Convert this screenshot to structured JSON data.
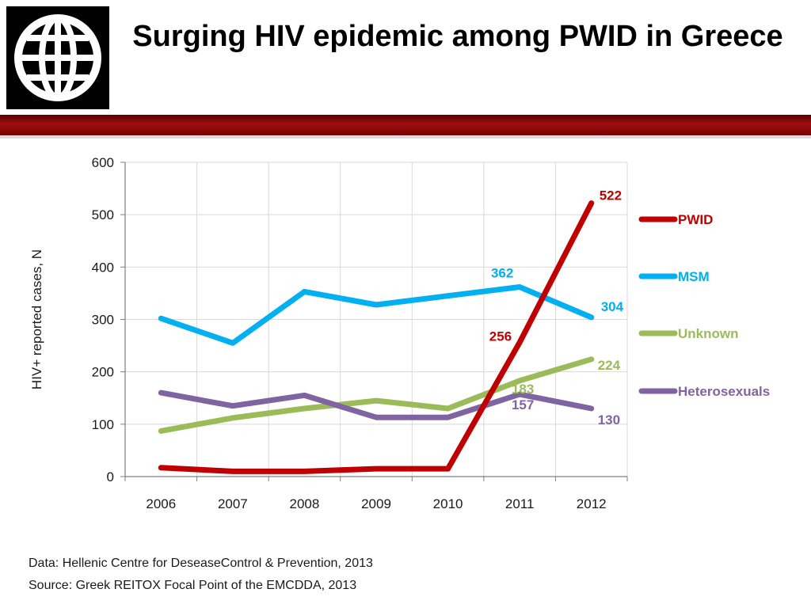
{
  "header": {
    "title": "Surging HIV epidemic among PWID in Greece"
  },
  "logo": {
    "icon": "globe-icon"
  },
  "footnotes": {
    "data": "Data: Hellenic Centre for DeseaseControl & Prevention, 2013",
    "source": "Source: Greek REITOX Focal Point of the EMCDDA, 2013"
  },
  "chart_data": {
    "type": "line",
    "title": "",
    "xlabel": "",
    "ylabel": "HIV+ reported cases, N",
    "categories": [
      "2006",
      "2007",
      "2008",
      "2009",
      "2010",
      "2011",
      "2012"
    ],
    "ylim": [
      0,
      600
    ],
    "yticks": [
      0,
      100,
      200,
      300,
      400,
      500,
      600
    ],
    "grid": true,
    "legend": "right",
    "series": [
      {
        "name": "PWID",
        "color": "#c00000",
        "values": [
          17,
          10,
          10,
          15,
          15,
          256,
          522
        ],
        "labels": [
          {
            "index": 5,
            "text": "256"
          },
          {
            "index": 6,
            "text": "522"
          }
        ]
      },
      {
        "name": "MSM",
        "color": "#00b0f0",
        "values": [
          302,
          255,
          353,
          328,
          345,
          362,
          304
        ],
        "labels": [
          {
            "index": 5,
            "text": "362"
          },
          {
            "index": 6,
            "text": "304"
          }
        ]
      },
      {
        "name": "Unknown",
        "color": "#9bbb59",
        "values": [
          87,
          112,
          130,
          145,
          130,
          183,
          224
        ],
        "labels": [
          {
            "index": 5,
            "text": "183"
          },
          {
            "index": 6,
            "text": "224"
          }
        ]
      },
      {
        "name": "Heterosexuals",
        "color": "#8064a2",
        "values": [
          160,
          135,
          155,
          113,
          113,
          157,
          130
        ],
        "labels": [
          {
            "index": 5,
            "text": "157"
          },
          {
            "index": 6,
            "text": "130"
          }
        ]
      }
    ]
  }
}
